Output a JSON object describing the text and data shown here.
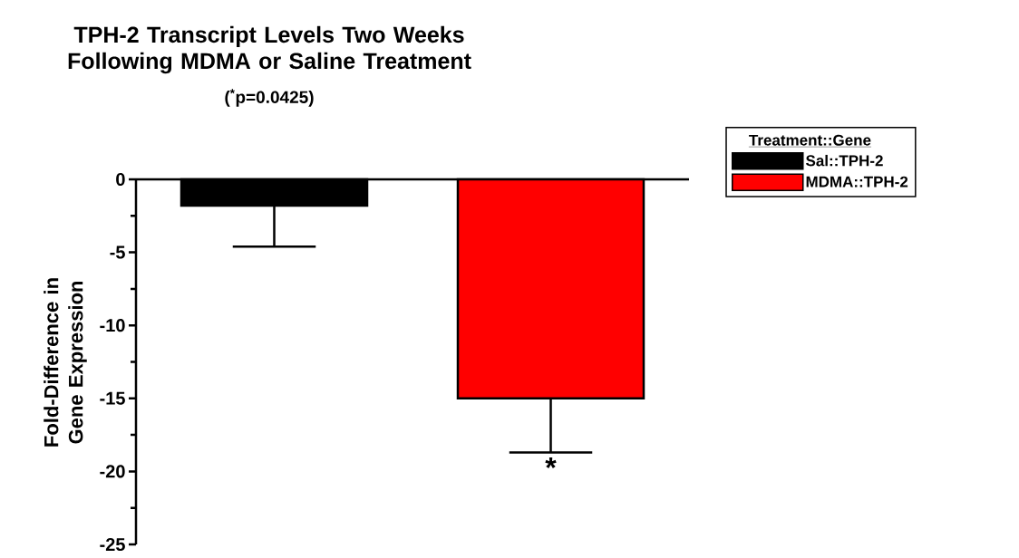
{
  "chart_data": {
    "type": "bar",
    "title": "TPH-2 Transcript Levels Two Weeks Following MDMA or Saline Treatment",
    "subtitle": "($^{*}$p=0.0425)",
    "ylabel": "Fold-Difference in Gene Expression",
    "legend_title": "Treatment::Gene",
    "categories": [
      null,
      null
    ],
    "series": [
      {
        "name": "Sal::TPH-2",
        "color": "#000000",
        "values": [
          -1.8,
          null
        ],
        "errors": [
          [
            -4.6,
            -1.8
          ],
          null
        ]
      },
      {
        "name": "MDMA::TPH-2",
        "color": "#ff0000",
        "values": [
          null,
          -15.0
        ],
        "errors": [
          null,
          [
            -18.7,
            -15.0
          ]
        ]
      }
    ],
    "ylim": [
      -25,
      0
    ],
    "yticks": [
      0,
      -5,
      -10,
      -15,
      -20,
      -25
    ],
    "annotations": [
      "*"
    ],
    "legend": "top right"
  }
}
